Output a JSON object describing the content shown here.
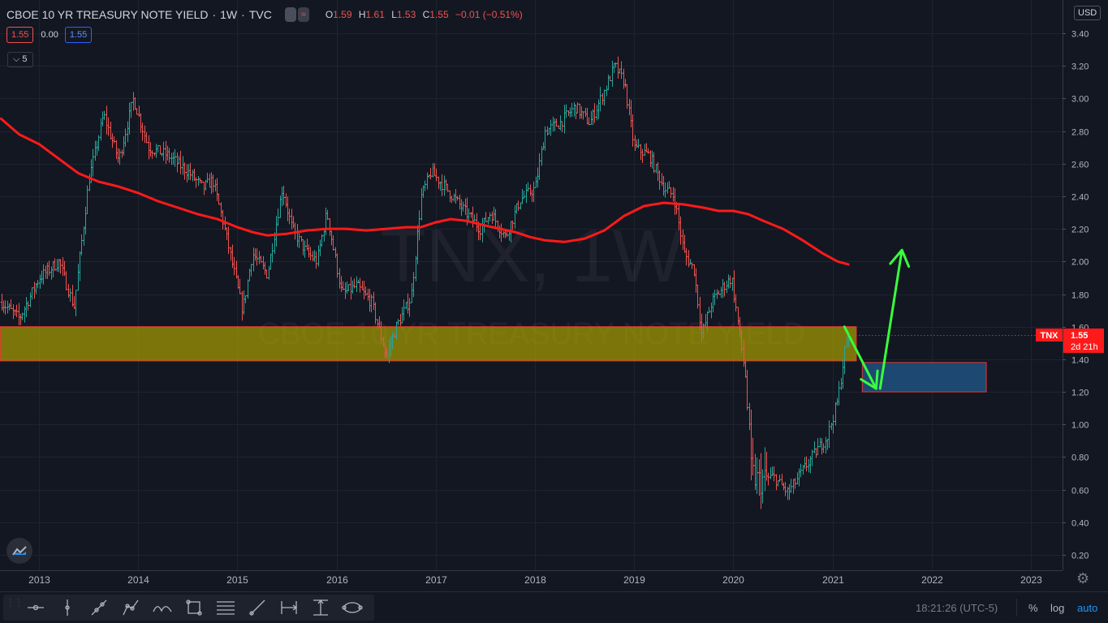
{
  "header": {
    "title": "CBOE 10 YR TREASURY NOTE YIELD",
    "interval": "1W",
    "exchange": "TVC",
    "ohlc": [
      {
        "key": "O",
        "value": "1.59"
      },
      {
        "key": "H",
        "value": "1.61"
      },
      {
        "key": "L",
        "value": "1.53"
      },
      {
        "key": "C",
        "value": "1.55"
      }
    ],
    "change": "−0.01 (−0.51%)"
  },
  "indicator": {
    "left": "1.55",
    "mid": "0.00",
    "right": "1.55"
  },
  "collapse_label": "5",
  "currency": "USD",
  "watermark": {
    "symbol": "TNX, 1W",
    "description": "CBOE 10 YR TREASURY NOTE YIELD"
  },
  "price_tag": {
    "symbol": "TNX",
    "price": "1.55",
    "countdown": "2d 21h"
  },
  "status_bar": {
    "time": "18:21:26 (UTC-5)",
    "percent": "%",
    "log": "log",
    "auto": "auto"
  },
  "toolbar_icons": [
    "crosshair-icon",
    "cursor-line-icon",
    "trend-line-icon",
    "path-icon",
    "pattern-icon",
    "rectangle-icon",
    "fib-retracement-icon",
    "ray-icon",
    "date-range-icon",
    "price-range-icon",
    "ellipse-icon"
  ],
  "colors": {
    "background": "#131722",
    "up": "#26a69a",
    "down": "#ef5350",
    "ma": "#ff1a1a",
    "zone": "#a9a000",
    "target": "#1f4e7a",
    "arrow": "#39ff3c"
  },
  "chart_data": {
    "type": "ohlc",
    "title": "CBOE 10 YR TREASURY NOTE YIELD",
    "ylim": [
      0.1,
      3.5
    ],
    "y_ticks": [
      "3.40",
      "3.20",
      "3.00",
      "2.80",
      "2.60",
      "2.40",
      "2.20",
      "2.00",
      "1.80",
      "1.60",
      "1.40",
      "1.20",
      "1.00",
      "0.80",
      "0.60",
      "0.40",
      "0.20"
    ],
    "x_ticks": [
      "2013",
      "2014",
      "2015",
      "2016",
      "2017",
      "2018",
      "2019",
      "2020",
      "2021",
      "2022",
      "2023"
    ],
    "x_range": [
      2012.61,
      2023.4
    ],
    "price_path": [
      [
        2012.62,
        1.75
      ],
      [
        2012.8,
        1.65
      ],
      [
        2013.0,
        1.9
      ],
      [
        2013.2,
        2.0
      ],
      [
        2013.35,
        1.72
      ],
      [
        2013.5,
        2.5
      ],
      [
        2013.65,
        2.9
      ],
      [
        2013.8,
        2.62
      ],
      [
        2013.95,
        3.0
      ],
      [
        2014.1,
        2.7
      ],
      [
        2014.3,
        2.65
      ],
      [
        2014.5,
        2.55
      ],
      [
        2014.65,
        2.45
      ],
      [
        2014.75,
        2.5
      ],
      [
        2014.85,
        2.25
      ],
      [
        2015.05,
        1.7
      ],
      [
        2015.15,
        2.05
      ],
      [
        2015.3,
        1.92
      ],
      [
        2015.45,
        2.45
      ],
      [
        2015.55,
        2.2
      ],
      [
        2015.7,
        2.05
      ],
      [
        2015.8,
        2.0
      ],
      [
        2015.9,
        2.3
      ],
      [
        2016.05,
        1.8
      ],
      [
        2016.2,
        1.85
      ],
      [
        2016.35,
        1.75
      ],
      [
        2016.5,
        1.42
      ],
      [
        2016.6,
        1.6
      ],
      [
        2016.75,
        1.78
      ],
      [
        2016.85,
        2.4
      ],
      [
        2016.95,
        2.55
      ],
      [
        2017.1,
        2.45
      ],
      [
        2017.3,
        2.3
      ],
      [
        2017.45,
        2.2
      ],
      [
        2017.55,
        2.3
      ],
      [
        2017.7,
        2.15
      ],
      [
        2017.85,
        2.38
      ],
      [
        2018.0,
        2.45
      ],
      [
        2018.1,
        2.8
      ],
      [
        2018.25,
        2.85
      ],
      [
        2018.4,
        2.95
      ],
      [
        2018.55,
        2.85
      ],
      [
        2018.7,
        3.05
      ],
      [
        2018.8,
        3.2
      ],
      [
        2018.9,
        3.1
      ],
      [
        2019.0,
        2.7
      ],
      [
        2019.15,
        2.65
      ],
      [
        2019.3,
        2.45
      ],
      [
        2019.4,
        2.4
      ],
      [
        2019.5,
        2.05
      ],
      [
        2019.6,
        1.95
      ],
      [
        2019.68,
        1.55
      ],
      [
        2019.78,
        1.75
      ],
      [
        2019.9,
        1.85
      ],
      [
        2019.98,
        1.9
      ],
      [
        2020.05,
        1.6
      ],
      [
        2020.12,
        1.3
      ],
      [
        2020.18,
        0.7
      ],
      [
        2020.25,
        0.65
      ],
      [
        2020.4,
        0.68
      ],
      [
        2020.55,
        0.58
      ],
      [
        2020.7,
        0.72
      ],
      [
        2020.85,
        0.85
      ],
      [
        2020.95,
        0.93
      ],
      [
        2021.05,
        1.15
      ],
      [
        2021.12,
        1.45
      ],
      [
        2021.17,
        1.55
      ]
    ],
    "moving_average": [
      [
        2012.61,
        2.88
      ],
      [
        2012.8,
        2.78
      ],
      [
        2013.0,
        2.72
      ],
      [
        2013.2,
        2.63
      ],
      [
        2013.4,
        2.54
      ],
      [
        2013.6,
        2.49
      ],
      [
        2013.8,
        2.46
      ],
      [
        2014.0,
        2.42
      ],
      [
        2014.2,
        2.37
      ],
      [
        2014.4,
        2.33
      ],
      [
        2014.6,
        2.29
      ],
      [
        2014.8,
        2.26
      ],
      [
        2015.0,
        2.21
      ],
      [
        2015.15,
        2.18
      ],
      [
        2015.3,
        2.16
      ],
      [
        2015.5,
        2.17
      ],
      [
        2015.7,
        2.19
      ],
      [
        2015.9,
        2.2
      ],
      [
        2016.1,
        2.2
      ],
      [
        2016.3,
        2.19
      ],
      [
        2016.5,
        2.2
      ],
      [
        2016.7,
        2.21
      ],
      [
        2016.85,
        2.21
      ],
      [
        2017.0,
        2.24
      ],
      [
        2017.15,
        2.26
      ],
      [
        2017.3,
        2.25
      ],
      [
        2017.5,
        2.22
      ],
      [
        2017.65,
        2.2
      ],
      [
        2017.8,
        2.18
      ],
      [
        2017.95,
        2.15
      ],
      [
        2018.1,
        2.13
      ],
      [
        2018.3,
        2.12
      ],
      [
        2018.5,
        2.14
      ],
      [
        2018.7,
        2.19
      ],
      [
        2018.9,
        2.28
      ],
      [
        2019.1,
        2.34
      ],
      [
        2019.3,
        2.36
      ],
      [
        2019.5,
        2.35
      ],
      [
        2019.7,
        2.33
      ],
      [
        2019.85,
        2.31
      ],
      [
        2020.0,
        2.31
      ],
      [
        2020.15,
        2.29
      ],
      [
        2020.3,
        2.25
      ],
      [
        2020.5,
        2.2
      ],
      [
        2020.7,
        2.13
      ],
      [
        2020.9,
        2.05
      ],
      [
        2021.05,
        2.0
      ],
      [
        2021.17,
        1.98
      ]
    ],
    "support_zone": {
      "x": [
        2012.61,
        2021.24
      ],
      "y": [
        1.39,
        1.6
      ]
    },
    "target_box": {
      "x": [
        2021.3,
        2022.55
      ],
      "y": [
        1.2,
        1.38
      ]
    },
    "arrows": [
      {
        "from": [
          2021.12,
          1.6
        ],
        "to": [
          2021.44,
          1.22
        ]
      },
      {
        "from": [
          2021.48,
          1.22
        ],
        "to": [
          2021.7,
          2.07
        ]
      }
    ],
    "last_price": 1.55
  }
}
